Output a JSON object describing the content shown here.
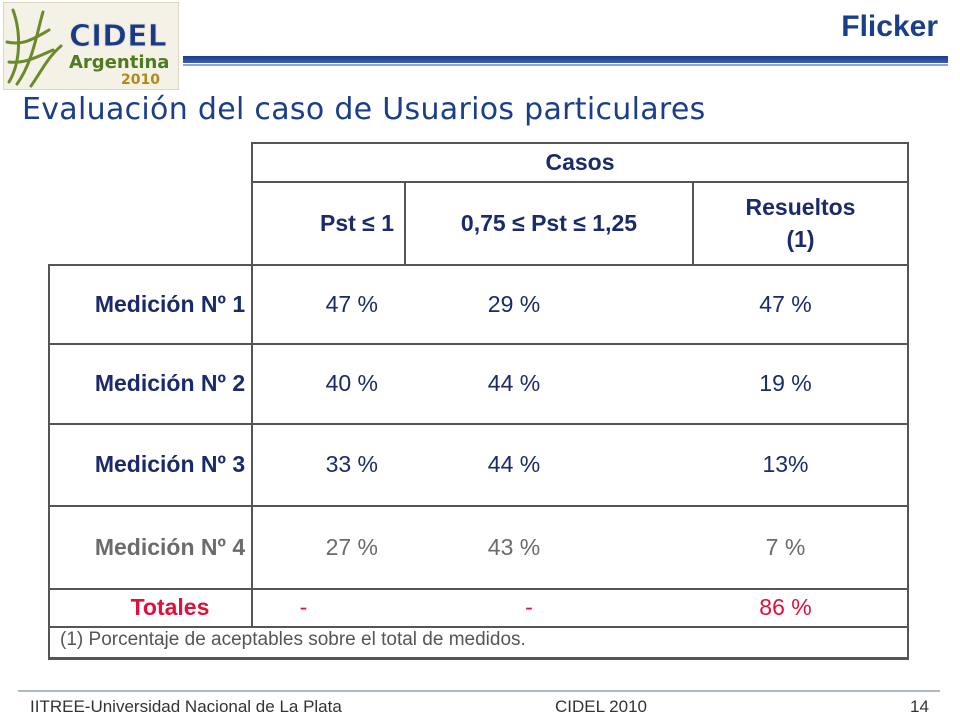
{
  "header": {
    "logo_text": "CIDEL Argentina 2010",
    "section": "Flicker"
  },
  "title": "Evaluación del caso de Usuarios particulares",
  "table": {
    "group_header": "Casos",
    "columns": [
      "Pst ≤ 1",
      "0,75 ≤ Pst ≤ 1,25",
      "Resueltos (1)"
    ],
    "rows": [
      {
        "label": "Medición Nº 1",
        "values": [
          "47 %",
          "29 %",
          "47 %"
        ]
      },
      {
        "label": "Medición Nº 2",
        "values": [
          "40 %",
          "44 %",
          "19 %"
        ]
      },
      {
        "label": "Medición Nº 3",
        "values": [
          "33 %",
          "44 %",
          "13%"
        ]
      },
      {
        "label": "Medición Nº 4",
        "values": [
          "27 %",
          "43 %",
          "7 %"
        ]
      }
    ],
    "totals": {
      "label": "Totales",
      "values": [
        "-",
        "-",
        "86 %"
      ]
    },
    "footnote_marker": "(1)",
    "footnote": "Porcentaje de aceptables sobre el total de medidos."
  },
  "footer": {
    "left": "IITREE-Universidad Nacional de La Plata",
    "center": "CIDEL 2010",
    "page": "14"
  },
  "colors": {
    "title": "#1a3e8a",
    "table_text": "#1a2a6c",
    "highlight": "#e0103a",
    "muted": "#6b6b6b"
  }
}
